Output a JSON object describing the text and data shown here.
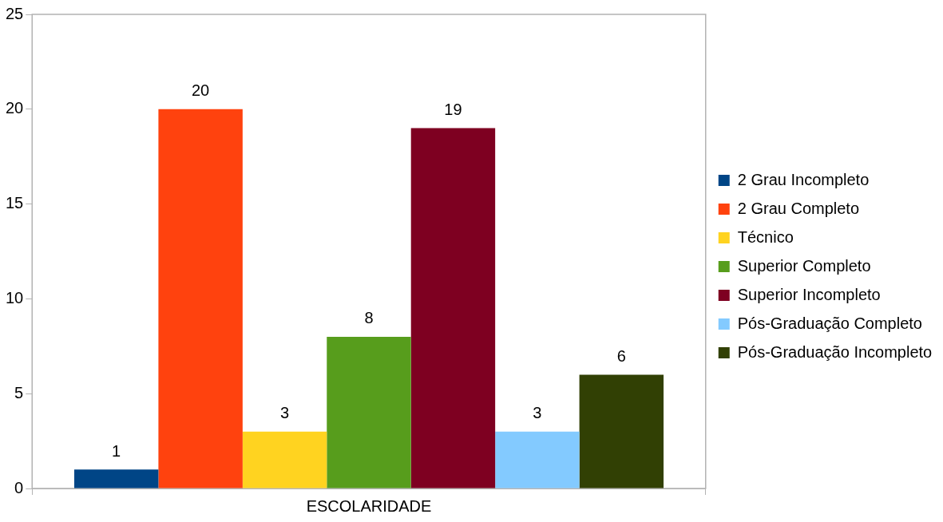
{
  "chart_data": {
    "type": "bar",
    "categories": [
      "ESCOLARIDADE"
    ],
    "series": [
      {
        "name": "2 Grau Incompleto",
        "color": "#004586",
        "values": [
          1
        ]
      },
      {
        "name": "2 Grau Completo",
        "color": "#ff420e",
        "values": [
          20
        ]
      },
      {
        "name": "Técnico",
        "color": "#ffd320",
        "values": [
          3
        ]
      },
      {
        "name": "Superior Completo",
        "color": "#579d1c",
        "values": [
          8
        ]
      },
      {
        "name": "Superior Incompleto",
        "color": "#7e0021",
        "values": [
          19
        ]
      },
      {
        "name": "Pós-Graduação Completo",
        "color": "#83caff",
        "values": [
          3
        ]
      },
      {
        "name": "Pós-Graduação Incompleto",
        "color": "#314004",
        "values": [
          6
        ]
      }
    ],
    "ylim": [
      0,
      25
    ],
    "yticks": [
      0,
      5,
      10,
      15,
      20,
      25
    ],
    "grid": false,
    "legend": "right",
    "data_labels": true
  }
}
